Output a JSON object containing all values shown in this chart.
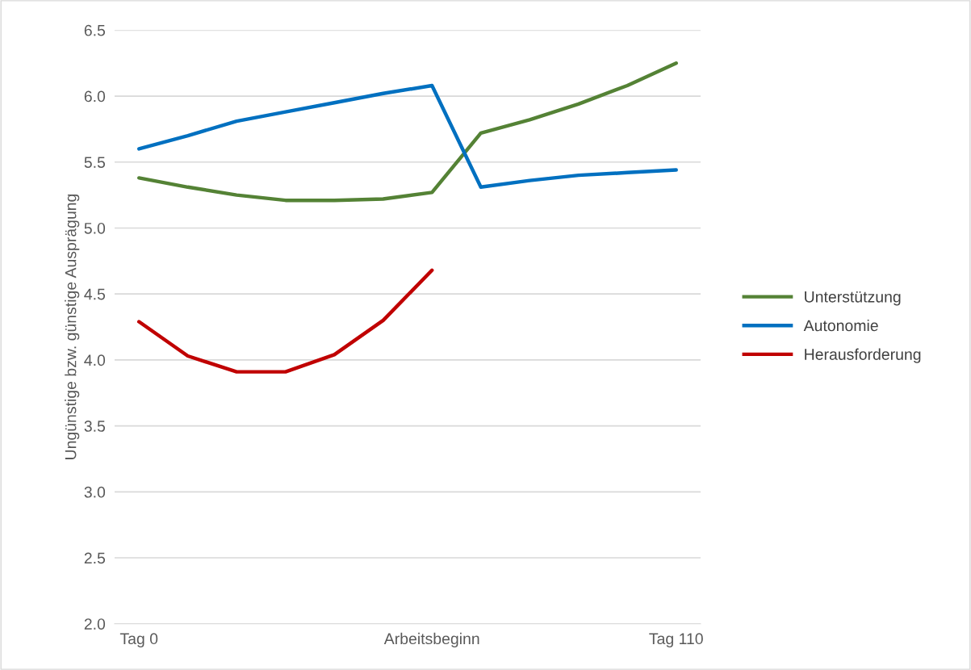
{
  "chart_data": {
    "type": "line",
    "ylabel": "Ungünstige bzw. günstige Ausprägung",
    "categories": [
      "Tag 0",
      null,
      null,
      null,
      null,
      null,
      "Arbeitsbeginn",
      null,
      null,
      null,
      null,
      "Tag 110"
    ],
    "series": [
      {
        "name": "Unterstützung",
        "color": "#548235",
        "values": [
          5.38,
          5.31,
          5.25,
          5.21,
          5.21,
          5.22,
          5.27,
          5.72,
          5.82,
          5.94,
          6.08,
          6.25
        ]
      },
      {
        "name": "Autonomie",
        "color": "#0070c0",
        "values": [
          5.6,
          5.7,
          5.81,
          5.88,
          5.95,
          6.02,
          6.08,
          5.31,
          5.36,
          5.4,
          5.42,
          5.44
        ]
      },
      {
        "name": "Herausforderung",
        "color": "#c00000",
        "values": [
          4.29,
          4.03,
          3.91,
          3.91,
          4.04,
          4.3,
          4.68,
          null,
          null,
          null,
          null,
          null
        ]
      }
    ],
    "ylim": [
      2.0,
      6.5
    ],
    "yticks": [
      {
        "value": 2.0,
        "label": "2.0"
      },
      {
        "value": 2.5,
        "label": "2.5"
      },
      {
        "value": 3.0,
        "label": "3.0"
      },
      {
        "value": 3.5,
        "label": "3.5"
      },
      {
        "value": 4.0,
        "label": "4.0"
      },
      {
        "value": 4.5,
        "label": "4.5"
      },
      {
        "value": 5.0,
        "label": "5.0"
      },
      {
        "value": 5.5,
        "label": "5.5"
      },
      {
        "value": 6.0,
        "label": "6.0"
      },
      {
        "value": 6.5,
        "label": "6.5"
      }
    ],
    "grid": "y",
    "legend": "right",
    "marker": "none",
    "line_style": "solid"
  }
}
